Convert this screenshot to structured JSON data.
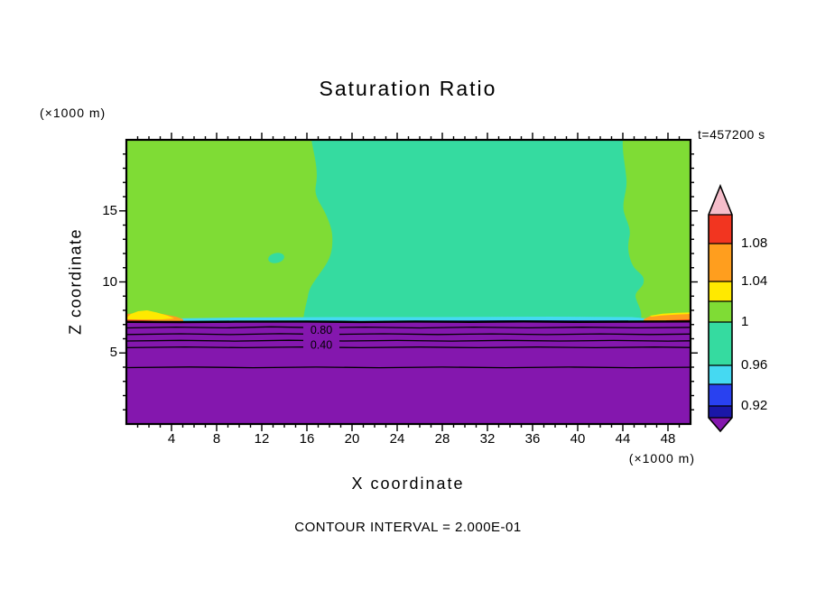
{
  "chart_data": {
    "type": "heatmap",
    "subtype": "filled_contour",
    "title": "Saturation Ratio",
    "annotations": {
      "timestamp": "t=457200 s",
      "footer": "CONTOUR INTERVAL = 2.000E-01",
      "y_units": "(×1000 m)",
      "x_units": "(×1000 m)"
    },
    "axes": {
      "xlabel": "X coordinate",
      "ylabel": "Z coordinate",
      "xlim": [
        0,
        50
      ],
      "ylim": [
        0,
        20
      ],
      "x_ticks": [
        "4",
        "8",
        "12",
        "16",
        "20",
        "24",
        "28",
        "32",
        "36",
        "40",
        "44",
        "48"
      ],
      "y_ticks": [
        "15",
        "10",
        "5"
      ]
    },
    "contours": {
      "interval": "2.000E-01",
      "labels": {
        "upper": "0.80",
        "lower": "0.40"
      }
    },
    "colorbar": {
      "labels": [
        "1.08",
        "1.04",
        "1",
        "0.96",
        "0.92"
      ],
      "order_top_to_bottom": [
        "pink",
        "red",
        "orange",
        "yellow",
        "green",
        "teal",
        "cyan",
        "blue",
        "navy",
        "purple"
      ]
    },
    "colors": {
      "pink": "#F5BDCA",
      "red": "#F23520",
      "orange": "#FF9E1E",
      "yellow": "#FFE900",
      "green": "#7FDC35",
      "teal": "#35DBA0",
      "cyan": "#45D9F2",
      "blue": "#2941F0",
      "navy": "#1A17A8",
      "purple": "#8417AE",
      "line": "#000000"
    },
    "field_summary": [
      "green fill: upper layer at left and right (saturation ratio just above 1)",
      "teal fill: upper layer central region (saturation ratio just below 1)",
      "thin cyan band along the interface near z=7",
      "yellow/orange/red patches at the interface near the left and right edges",
      "purple fill: lower layer below about z=7 with black contour lines labeled 0.80 and 0.40"
    ]
  }
}
